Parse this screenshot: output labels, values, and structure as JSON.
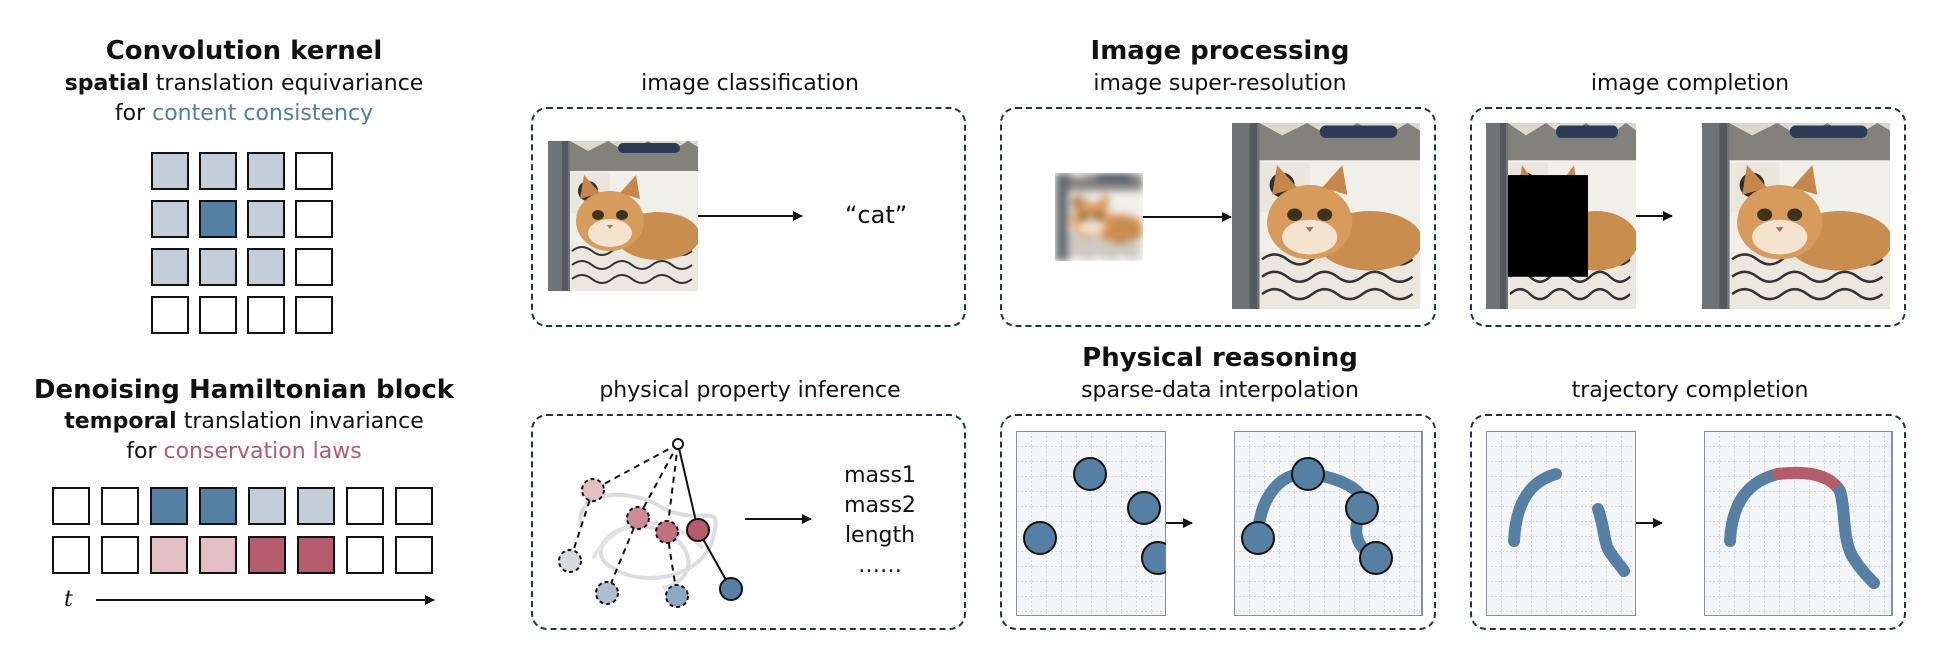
{
  "left_top": {
    "title": "Convolution kernel",
    "line1_bold": "spatial",
    "line1_rest": " translation equivariance",
    "line2_prefix": "for ",
    "line2_colored": "content consistency"
  },
  "left_bottom": {
    "title": "Denoising Hamiltonian block",
    "line1_bold": "temporal",
    "line1_rest": " translation invariance",
    "line2_prefix": "for ",
    "line2_colored": "conservation laws",
    "axis_label": "t"
  },
  "sections": {
    "image_processing": "Image processing",
    "physical_reasoning": "Physical reasoning"
  },
  "panels": {
    "image_classification": {
      "label": "image classification",
      "output": "“cat”"
    },
    "image_super_resolution": {
      "label": "image super-resolution"
    },
    "image_completion": {
      "label": "image completion"
    },
    "physical_property_inference": {
      "label": "physical property inference",
      "outputs": [
        "mass1",
        "mass2",
        "length",
        "……"
      ]
    },
    "sparse_data_interpolation": {
      "label": "sparse-data interpolation"
    },
    "trajectory_completion": {
      "label": "trajectory completion"
    }
  },
  "colors": {
    "accent_blue": "#4f7fa6",
    "accent_red": "#b25a6e",
    "cell_grey": "#c4ced8",
    "cell_blue": "#5580a4",
    "cell_pink": "#e3bec6",
    "cell_red": "#b45b6e",
    "panel_border": "#1f3257"
  },
  "icons": {
    "cat_photo": "cat-photo",
    "blurred_cat_photo": "blurred-cat-photo",
    "masked_cat_photo": "masked-cat-photo",
    "pendulum_diagram": "pendulum-diagram",
    "grid_plot": "grid-plot"
  }
}
